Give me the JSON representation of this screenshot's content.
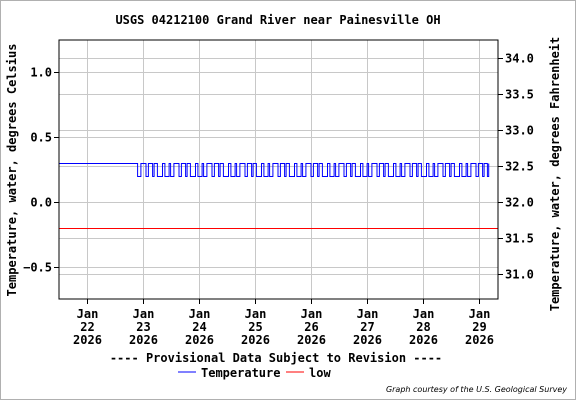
{
  "chart_data": {
    "type": "line",
    "title": "USGS 04212100 Grand River near Painesville OH",
    "ylabel": "Temperature, water, degrees Celsius",
    "y2label": "Temperature, water, degrees Fahrenheit",
    "ylim": [
      -0.75,
      1.25
    ],
    "y2lim": [
      30.65,
      34.25
    ],
    "yticks": [
      1.0,
      0.5,
      0.0,
      -0.5
    ],
    "yticklabels": [
      "1.0",
      "0.5",
      "0.0",
      "−0.5"
    ],
    "y2ticks": [
      34.0,
      33.5,
      33.0,
      32.5,
      32.0,
      31.5,
      31.0
    ],
    "y2ticklabels": [
      "34.0",
      "33.5",
      "33.0",
      "32.5",
      "32.0",
      "31.5",
      "31.0"
    ],
    "xlim": [
      "2026-01-21T12:00",
      "2026-01-29T08:00"
    ],
    "xticks": [
      {
        "date": "2026-01-22",
        "label": [
          "Jan",
          "22",
          "2026"
        ]
      },
      {
        "date": "2026-01-23",
        "label": [
          "Jan",
          "23",
          "2026"
        ]
      },
      {
        "date": "2026-01-24",
        "label": [
          "Jan",
          "24",
          "2026"
        ]
      },
      {
        "date": "2026-01-25",
        "label": [
          "Jan",
          "25",
          "2026"
        ]
      },
      {
        "date": "2026-01-26",
        "label": [
          "Jan",
          "26",
          "2026"
        ]
      },
      {
        "date": "2026-01-27",
        "label": [
          "Jan",
          "27",
          "2026"
        ]
      },
      {
        "date": "2026-01-28",
        "label": [
          "Jan",
          "28",
          "2026"
        ]
      },
      {
        "date": "2026-01-29",
        "label": [
          "Jan",
          "29",
          "2026"
        ]
      }
    ],
    "grid": true,
    "legend_position": "bottom-center",
    "series": [
      {
        "name": "Temperature",
        "color": "#0000ff",
        "segments": [
          {
            "start": "2026-01-21T12:00",
            "end": "2026-01-22T21:00",
            "pattern": "constant",
            "value": 0.3
          },
          {
            "start": "2026-01-22T21:00",
            "end": "2026-01-29T04:00",
            "pattern": "toggle",
            "values": [
              0.2,
              0.3
            ]
          }
        ]
      },
      {
        "name": "low",
        "color": "#ff0000",
        "segments": [
          {
            "start": "2026-01-21T12:00",
            "end": "2026-01-29T08:00",
            "pattern": "constant",
            "value": -0.2
          }
        ]
      }
    ],
    "notice": "---- Provisional Data Subject to Revision ----",
    "notice_color": "#cc0000",
    "credit": "Graph courtesy of the U.S. Geological Survey"
  }
}
